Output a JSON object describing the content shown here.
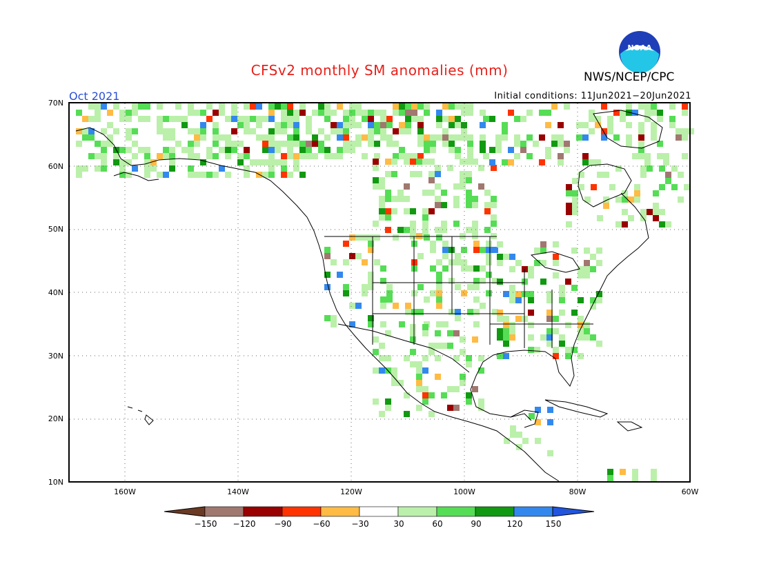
{
  "title": "CFSv2 monthly SM anomalies (mm)",
  "agency": "NWS/NCEP/CPC",
  "valid_month": "Oct 2021",
  "initial_conditions": "Initial conditions: 11Jun2021−20Jun2021",
  "logo_text": "NOAA",
  "lat_labels": [
    "70N",
    "60N",
    "50N",
    "40N",
    "30N",
    "20N",
    "10N"
  ],
  "lon_labels": [
    "160W",
    "140W",
    "120W",
    "100W",
    "80W",
    "60W"
  ],
  "colorbar": {
    "labels": [
      "−150",
      "−120",
      "−90",
      "−60",
      "−30",
      "30",
      "60",
      "90",
      "120",
      "150"
    ],
    "colors": [
      "#6b3a24",
      "#a07870",
      "#990000",
      "#ff3300",
      "#ffbb44",
      "#ffffff",
      "#bbf0aa",
      "#55dd55",
      "#119911",
      "#3388ee",
      "#2255dd"
    ]
  }
}
